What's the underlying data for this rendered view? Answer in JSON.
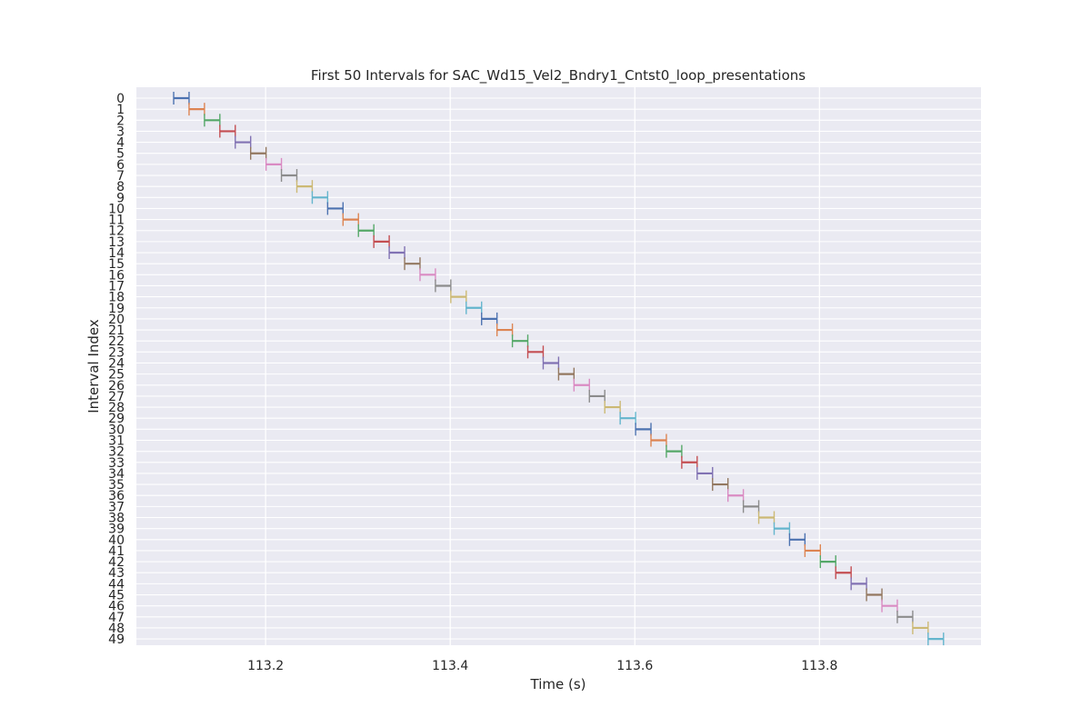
{
  "chart_data": {
    "type": "interval",
    "title": "First 50 Intervals for SAC_Wd15_Vel2_Bndry1_Cntst0_loop_presentations",
    "xlabel": "Time (s)",
    "ylabel": "Interval Index",
    "xlim": [
      113.06,
      113.975
    ],
    "x_ticks": [
      113.2,
      113.4,
      113.6,
      113.8
    ],
    "x_tick_labels": [
      "113.2",
      "113.4",
      "113.6",
      "113.8"
    ],
    "y_ticks": [
      0,
      1,
      2,
      3,
      4,
      5,
      6,
      7,
      8,
      9,
      10,
      11,
      12,
      13,
      14,
      15,
      16,
      17,
      18,
      19,
      20,
      21,
      22,
      23,
      24,
      25,
      26,
      27,
      28,
      29,
      30,
      31,
      32,
      33,
      34,
      35,
      36,
      37,
      38,
      39,
      40,
      41,
      42,
      43,
      44,
      45,
      46,
      47,
      48,
      49
    ],
    "y_tick_labels": [
      "0",
      "1",
      "2",
      "3",
      "4",
      "5",
      "6",
      "7",
      "8",
      "9",
      "10",
      "11",
      "12",
      "13",
      "14",
      "15",
      "16",
      "17",
      "18",
      "19",
      "20",
      "21",
      "22",
      "23",
      "24",
      "25",
      "26",
      "27",
      "28",
      "29",
      "30",
      "31",
      "32",
      "33",
      "34",
      "35",
      "36",
      "37",
      "38",
      "39",
      "40",
      "41",
      "42",
      "43",
      "44",
      "45",
      "46",
      "47",
      "48",
      "49"
    ],
    "interval_start_first": 113.1004,
    "interval_step": 0.01668,
    "interval_width": 0.01668,
    "count": 50,
    "grid": true,
    "background": "#eaeaf2",
    "palette": [
      "#4c72b0",
      "#dd8452",
      "#55a868",
      "#c44e52",
      "#8172b3",
      "#937860",
      "#da8bc3",
      "#8c8c8c",
      "#ccb974",
      "#64b5cd"
    ]
  }
}
